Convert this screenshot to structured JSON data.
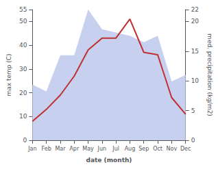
{
  "chart_data": {
    "type": "line",
    "xlabel": "date (month)",
    "ylabel": "max temp (C)",
    "y2label": "med. precipitation (kg/m2)",
    "categories": [
      "Jan",
      "Feb",
      "Mar",
      "Apr",
      "May",
      "Jun",
      "Jul",
      "Aug",
      "Sep",
      "Oct",
      "Nov",
      "Dec"
    ],
    "series": [
      {
        "type": "area",
        "color": "#c8d0f0",
        "values": [
          23.375,
          20.625,
          35.75,
          35.75,
          55,
          46.75,
          45.375,
          44,
          41.25,
          44,
          24.75,
          27.5
        ]
      },
      {
        "type": "line",
        "color": "#c03030",
        "values": [
          8,
          13,
          19,
          27,
          38,
          43,
          43,
          51,
          37,
          36,
          18,
          11
        ]
      }
    ],
    "ylim": [
      0,
      55
    ],
    "yticks": [
      0,
      10,
      20,
      30,
      40,
      50
    ],
    "y2lim": [
      0,
      22
    ],
    "y2ticks": [
      0,
      5,
      10,
      15,
      20
    ],
    "grid": false
  }
}
